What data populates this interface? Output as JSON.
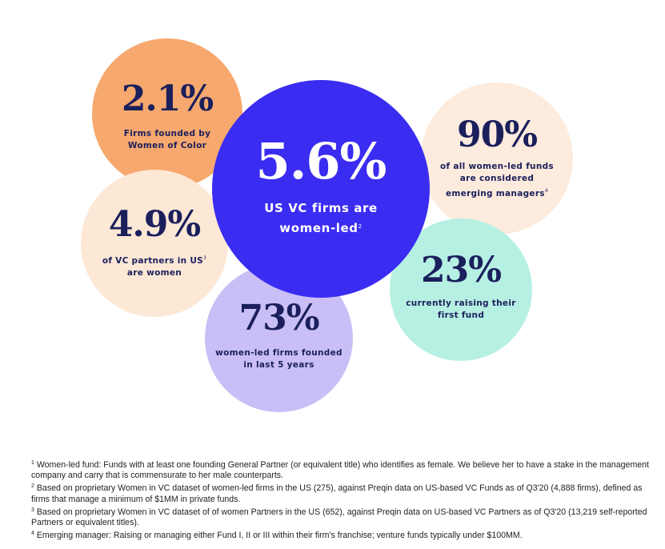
{
  "colors": {
    "navy_text": "#1b1f5c",
    "primary_bubble": "#3a2cf1",
    "orange_bubble": "#f6a86e",
    "peach_bubble": "#fde8d6",
    "lavender_bubble": "#c9bff6",
    "mint_bubble": "#b6f0e3"
  },
  "stats": {
    "main": {
      "value": "5.6%",
      "line1": "US VC firms are",
      "line2": "women-led",
      "note": "2"
    },
    "women_of_color": {
      "value": "2.1%",
      "line1": "Firms founded by",
      "line2": "Women of Color"
    },
    "partners": {
      "value": "4.9%",
      "line1": "of VC partners in US",
      "line2": "are women",
      "note": "3"
    },
    "emerging": {
      "value": "90%",
      "line1": "of all women-led funds",
      "line2": "are considered",
      "line3": "emerging managers",
      "note": "4"
    },
    "raising": {
      "value": "23%",
      "line1": "currently raising their",
      "line2": "first fund"
    },
    "recent": {
      "value": "73%",
      "line1": "women-led firms founded",
      "line2": "in last 5 years"
    }
  },
  "footnotes": [
    {
      "num": "1",
      "text": "Women-led fund: Funds with at least one founding General Partner (or equivalent title) who identifies as female. We believe her to have a stake in the management company and carry that is commensurate to her male counterparts."
    },
    {
      "num": "2",
      "text": "Based on proprietary Women in VC dataset of women-led firms in the US (275), against Preqin data on US-based VC Funds as of Q3'20 (4,888 firms), defined as firms that manage a minimum of $1MM in private funds."
    },
    {
      "num": "3",
      "text": "Based on proprietary Women in VC dataset of of women Partners in the US (652), against Preqin data on US-based VC Partners as of Q3'20 (13,219 self-reported Partners or equivalent titles)."
    },
    {
      "num": "4",
      "text": "Emerging manager: Raising or managing either Fund I, II or III within their firm's franchise; venture funds typically under $100MM."
    }
  ]
}
